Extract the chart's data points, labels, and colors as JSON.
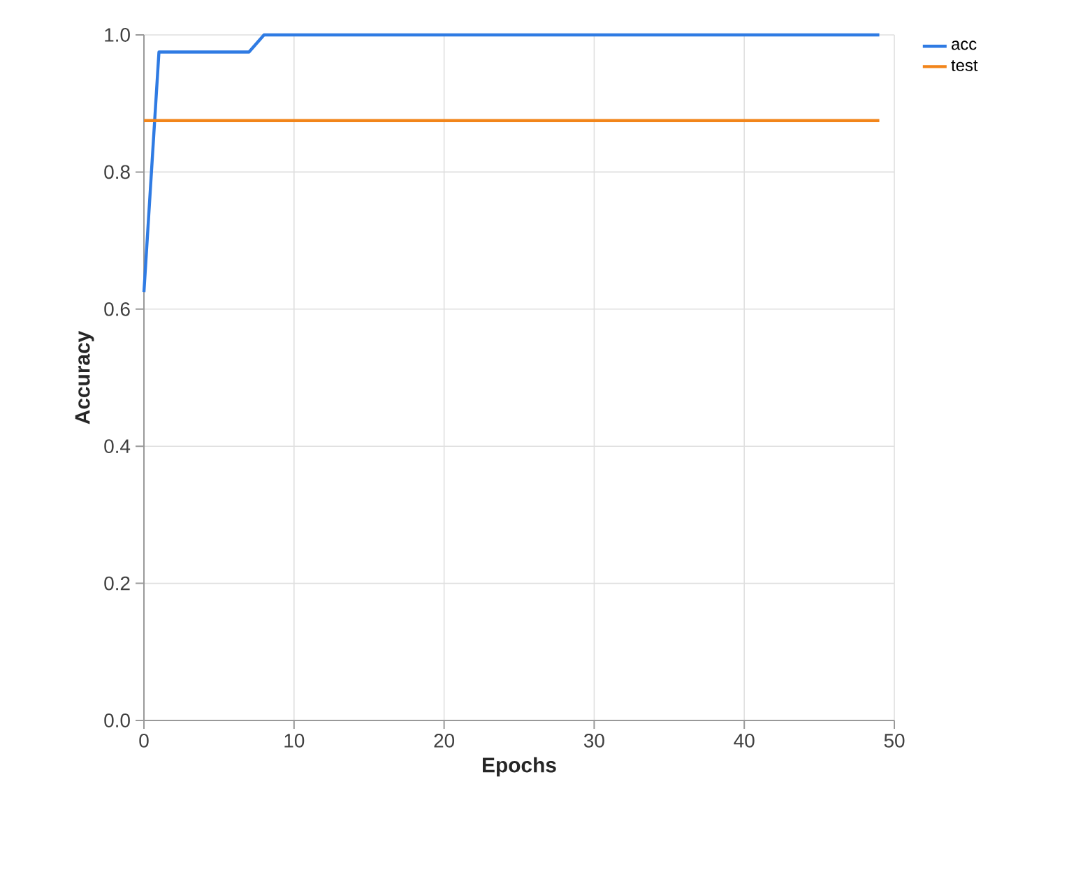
{
  "chart_data": {
    "type": "line",
    "xlabel": "Epochs",
    "ylabel": "Accuracy",
    "xlim": [
      0,
      50
    ],
    "xticks": [
      0,
      10,
      20,
      30,
      40,
      50
    ],
    "ylim": [
      0,
      1
    ],
    "yticks": [
      {
        "value": 0,
        "label": "0.0"
      },
      {
        "value": 0.2,
        "label": "0.2"
      },
      {
        "value": 0.4,
        "label": "0.4"
      },
      {
        "value": 0.6,
        "label": "0.6"
      },
      {
        "value": 0.8,
        "label": "0.8"
      },
      {
        "value": 1,
        "label": "1.0"
      }
    ],
    "grid": true,
    "legend": "top right",
    "marker": "none",
    "line_style": "solid",
    "series": [
      {
        "name": "acc",
        "color": "#2f7be3",
        "x": [
          0,
          1,
          7,
          8,
          49
        ],
        "values": [
          0.625,
          0.975,
          0.975,
          1.0,
          1.0
        ]
      },
      {
        "name": "test",
        "color": "#f2851a",
        "x": [
          0,
          49
        ],
        "values": [
          0.875,
          0.875
        ]
      }
    ]
  }
}
